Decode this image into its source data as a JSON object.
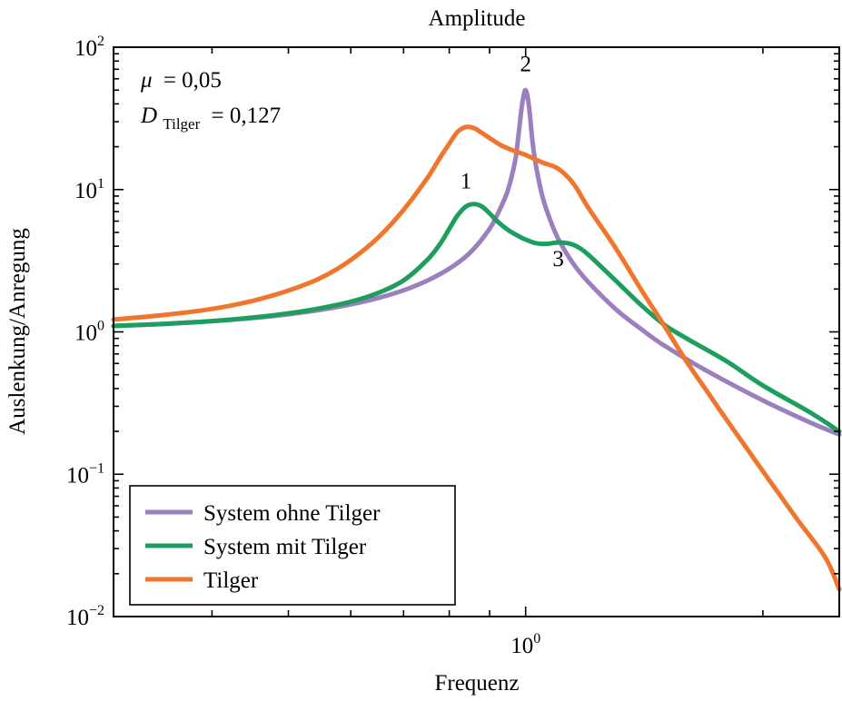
{
  "chart_data": {
    "type": "line",
    "title": "Amplitude",
    "xlabel": "Frequenz",
    "ylabel": "Auslenkung/Anregung",
    "x_scale": "log",
    "y_scale": "log",
    "xlim": [
      0.3,
      2.5
    ],
    "ylim": [
      0.01,
      100
    ],
    "x_ticks_major": [
      {
        "value": 1,
        "base": "10",
        "exp": "0"
      }
    ],
    "x_ticks_minor": [
      0.4,
      0.5,
      0.6,
      0.7,
      0.8,
      0.9,
      2
    ],
    "y_ticks": [
      {
        "value": 100,
        "base": "10",
        "exp": "2"
      },
      {
        "value": 10,
        "base": "10",
        "exp": "1"
      },
      {
        "value": 1,
        "base": "10",
        "exp": "0"
      },
      {
        "value": 0.1,
        "base": "10",
        "exp": "−1"
      },
      {
        "value": 0.01,
        "base": "10",
        "exp": "−2"
      }
    ],
    "grid": false,
    "legend_position": "bottom-left",
    "parameters": {
      "mu_symbol": "μ",
      "mu_value": "= 0,05",
      "d_symbol": "D",
      "d_subscript": "Tilger",
      "d_value": "= 0,127"
    },
    "annotations": [
      {
        "text": "1",
        "x": 0.84,
        "y": 10.2
      },
      {
        "text": "2",
        "x": 1.0,
        "y": 68
      },
      {
        "text": "3",
        "x": 1.1,
        "y": 2.9
      }
    ],
    "series": [
      {
        "name": "System ohne Tilger",
        "color": "#9b7fbf",
        "x": [
          0.3,
          0.35,
          0.4,
          0.45,
          0.5,
          0.55,
          0.6,
          0.65,
          0.7,
          0.75,
          0.8,
          0.85,
          0.9,
          0.93,
          0.95,
          0.97,
          0.98,
          0.99,
          1.0,
          1.01,
          1.02,
          1.03,
          1.05,
          1.07,
          1.1,
          1.15,
          1.2,
          1.3,
          1.4,
          1.5,
          1.7,
          2.0,
          2.3,
          2.5
        ],
        "y": [
          1.1,
          1.14,
          1.19,
          1.25,
          1.33,
          1.43,
          1.56,
          1.73,
          1.96,
          2.29,
          2.78,
          3.6,
          5.3,
          7.5,
          10.0,
          16.0,
          25.0,
          40.0,
          50.0,
          38.0,
          22.0,
          15.0,
          9.0,
          6.5,
          4.5,
          3.0,
          2.25,
          1.45,
          1.05,
          0.8,
          0.53,
          0.33,
          0.23,
          0.19
        ]
      },
      {
        "name": "System mit Tilger",
        "color": "#1e9e5e",
        "x": [
          0.3,
          0.35,
          0.4,
          0.45,
          0.5,
          0.55,
          0.6,
          0.65,
          0.7,
          0.75,
          0.78,
          0.8,
          0.82,
          0.84,
          0.86,
          0.88,
          0.9,
          0.92,
          0.95,
          0.98,
          1.0,
          1.03,
          1.06,
          1.1,
          1.13,
          1.16,
          1.2,
          1.3,
          1.4,
          1.5,
          1.6,
          1.8,
          2.0,
          2.3,
          2.5
        ],
        "y": [
          1.1,
          1.14,
          1.19,
          1.26,
          1.35,
          1.47,
          1.63,
          1.88,
          2.3,
          3.2,
          4.2,
          5.3,
          6.6,
          7.6,
          7.9,
          7.6,
          6.8,
          6.0,
          5.2,
          4.7,
          4.45,
          4.2,
          4.15,
          4.25,
          4.2,
          4.0,
          3.5,
          2.3,
          1.55,
          1.12,
          0.9,
          0.62,
          0.42,
          0.27,
          0.2
        ]
      },
      {
        "name": "Tilger",
        "color": "#f0762e",
        "x": [
          0.3,
          0.35,
          0.4,
          0.45,
          0.5,
          0.55,
          0.6,
          0.65,
          0.7,
          0.75,
          0.78,
          0.8,
          0.82,
          0.84,
          0.86,
          0.88,
          0.9,
          0.93,
          0.96,
          1.0,
          1.05,
          1.1,
          1.15,
          1.2,
          1.3,
          1.4,
          1.5,
          1.6,
          1.7,
          1.8,
          2.0,
          2.2,
          2.4,
          2.5
        ],
        "y": [
          1.22,
          1.32,
          1.45,
          1.65,
          1.95,
          2.4,
          3.2,
          4.6,
          7.2,
          12.0,
          17.0,
          21.0,
          25.5,
          27.5,
          27.0,
          25.0,
          23.0,
          20.5,
          19.0,
          17.5,
          15.5,
          14.0,
          11.0,
          7.5,
          3.9,
          2.0,
          1.1,
          0.62,
          0.38,
          0.24,
          0.105,
          0.05,
          0.026,
          0.0155
        ]
      }
    ]
  }
}
